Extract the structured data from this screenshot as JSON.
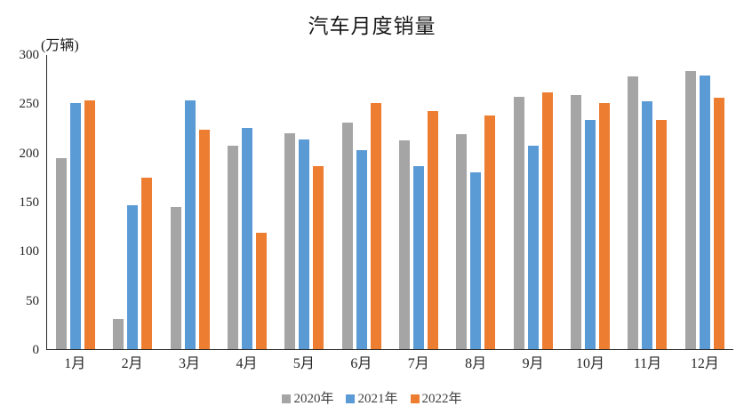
{
  "chart": {
    "title": "汽车月度销量",
    "unit_label": "(万辆)"
  },
  "chart_data": {
    "type": "bar",
    "title": "汽车月度销量",
    "ylabel": "(万辆)",
    "xlabel": "",
    "ylim": [
      0,
      300
    ],
    "ytick_step": 50,
    "yticks": [
      0,
      50,
      100,
      150,
      200,
      250,
      300
    ],
    "grid": false,
    "legend_position": "bottom",
    "axis_color": "#262626",
    "categories": [
      "1月",
      "2月",
      "3月",
      "4月",
      "5月",
      "6月",
      "7月",
      "8月",
      "9月",
      "10月",
      "11月",
      "12月"
    ],
    "series": [
      {
        "name": "2020年",
        "color": "#A5A5A5",
        "values": [
          194,
          31,
          145,
          207,
          220,
          230,
          212,
          219,
          257,
          258,
          277,
          283
        ]
      },
      {
        "name": "2021年",
        "color": "#5B9BD5",
        "values": [
          250,
          146,
          253,
          225,
          213,
          202,
          186,
          180,
          207,
          233,
          252,
          278
        ]
      },
      {
        "name": "2022年",
        "color": "#ED7D31",
        "values": [
          253,
          174,
          223,
          118,
          186,
          250,
          242,
          238,
          261,
          250,
          233,
          256
        ]
      }
    ]
  }
}
